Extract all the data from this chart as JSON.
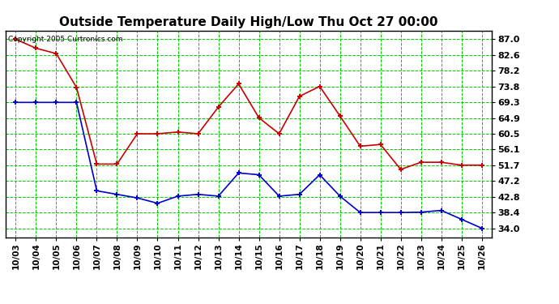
{
  "title": "Outside Temperature Daily High/Low Thu Oct 27 00:00",
  "copyright_text": "Copyright 2005 Curtronics.com",
  "dates": [
    "10/03",
    "10/04",
    "10/05",
    "10/06",
    "10/07",
    "10/08",
    "10/09",
    "10/10",
    "10/11",
    "10/12",
    "10/13",
    "10/14",
    "10/15",
    "10/16",
    "10/17",
    "10/18",
    "10/19",
    "10/20",
    "10/21",
    "10/22",
    "10/23",
    "10/24",
    "10/25",
    "10/26"
  ],
  "high_temps": [
    87.0,
    84.5,
    83.0,
    73.5,
    52.0,
    52.0,
    60.5,
    60.5,
    61.0,
    60.5,
    68.0,
    74.5,
    65.0,
    60.5,
    71.0,
    73.8,
    65.5,
    57.0,
    57.5,
    50.5,
    52.5,
    52.5,
    51.7,
    51.7
  ],
  "low_temps": [
    69.3,
    69.3,
    69.3,
    69.3,
    44.5,
    43.5,
    42.5,
    41.0,
    43.0,
    43.5,
    43.0,
    49.5,
    49.0,
    43.0,
    43.5,
    49.0,
    43.0,
    38.4,
    38.4,
    38.4,
    38.5,
    39.0,
    36.5,
    34.0
  ],
  "high_color": "#cc0000",
  "low_color": "#0000cc",
  "bg_color": "#ffffff",
  "grid_color": "#00cc00",
  "title_fontsize": 11,
  "yticks": [
    34.0,
    38.4,
    42.8,
    47.2,
    51.7,
    56.1,
    60.5,
    64.9,
    69.3,
    73.8,
    78.2,
    82.6,
    87.0
  ],
  "ylim": [
    31.5,
    89.5
  ],
  "xlim": [
    -0.5,
    23.5
  ]
}
